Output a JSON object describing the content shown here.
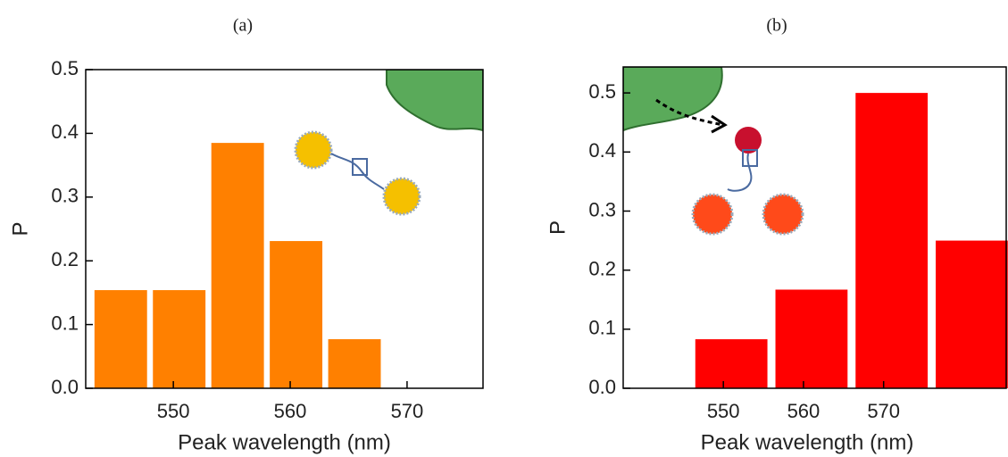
{
  "chart_data": [
    {
      "type": "histogram",
      "panel_label": "(a)",
      "xlabel": "Peak wavelength (nm)",
      "ylabel": "P",
      "bins": [
        543,
        548,
        553,
        558,
        563,
        568
      ],
      "values": [
        0.154,
        0.154,
        0.385,
        0.231,
        0.077
      ],
      "color": "#ff8000",
      "xlim": [
        542.5,
        576.5
      ],
      "xticks": [
        550,
        560,
        570
      ],
      "ylim": [
        0,
        0.5
      ],
      "yticks": [
        {
          "value": 0,
          "label": "0.0"
        },
        0.1,
        0.2,
        0.3,
        0.4,
        0.5
      ]
    },
    {
      "type": "histogram",
      "panel_label": "(b)",
      "xlabel": "Peak wavelength (nm)",
      "ylabel": "P",
      "bins": [
        546,
        556,
        566,
        576,
        586
      ],
      "values": [
        0.083,
        0.167,
        0.5,
        0.25
      ],
      "color": "#ff0000",
      "xlim": [
        537.5,
        585.3
      ],
      "xticks": [
        550,
        560,
        570
      ],
      "ylim": [
        0,
        0.544
      ],
      "yticks": [
        {
          "value": 0,
          "label": "0.0"
        },
        0.1,
        0.2,
        0.3,
        0.4,
        0.5
      ]
    }
  ]
}
